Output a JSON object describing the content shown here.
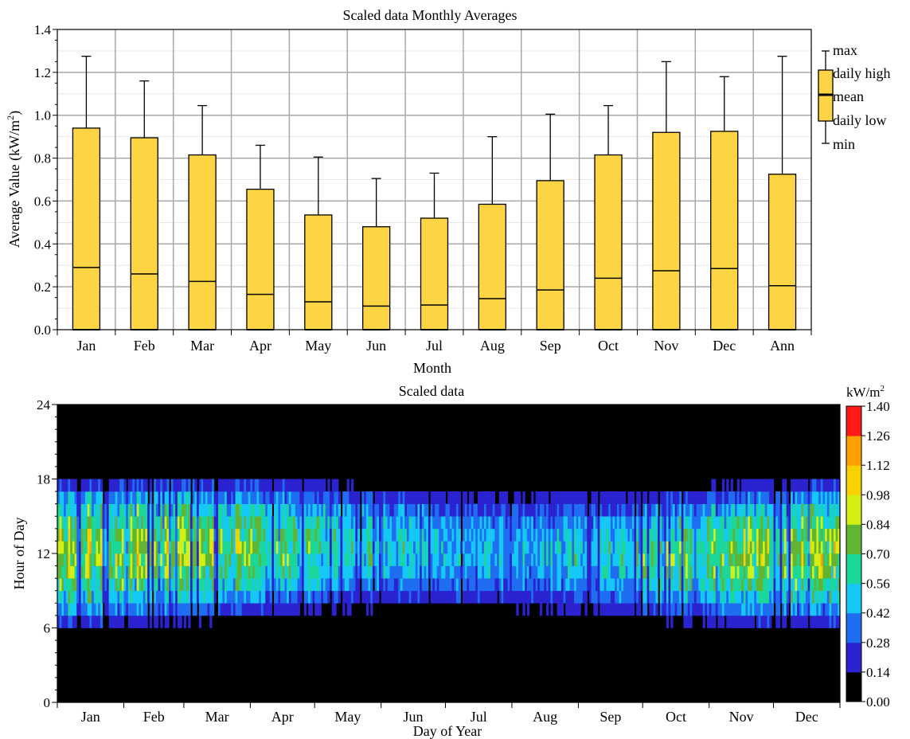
{
  "chart_data": [
    {
      "type": "box",
      "title": "Scaled data Monthly Averages",
      "xlabel": "Month",
      "ylabel": "Average Value (kW/m",
      "ylabel_sup": "2",
      "ylabel_close": ")",
      "ylim": [
        0,
        1.4
      ],
      "yticks": [
        "0.0",
        "0.2",
        "0.4",
        "0.6",
        "0.8",
        "1.0",
        "1.2",
        "1.4"
      ],
      "grid": true,
      "box_color": "#fcd444",
      "categories": [
        "Jan",
        "Feb",
        "Mar",
        "Apr",
        "May",
        "Jun",
        "Jul",
        "Aug",
        "Sep",
        "Oct",
        "Nov",
        "Dec",
        "Ann"
      ],
      "max": [
        1.275,
        1.16,
        1.045,
        0.86,
        0.805,
        0.705,
        0.73,
        0.9,
        1.005,
        1.045,
        1.25,
        1.18,
        1.275
      ],
      "daily_high": [
        0.94,
        0.895,
        0.815,
        0.655,
        0.535,
        0.48,
        0.52,
        0.585,
        0.695,
        0.815,
        0.92,
        0.925,
        0.725
      ],
      "mean": [
        0.29,
        0.26,
        0.225,
        0.165,
        0.13,
        0.11,
        0.115,
        0.145,
        0.185,
        0.24,
        0.275,
        0.285,
        0.205
      ],
      "daily_low": [
        0,
        0,
        0,
        0,
        0,
        0,
        0,
        0,
        0,
        0,
        0,
        0,
        0
      ],
      "min": [
        0,
        0,
        0,
        0,
        0,
        0,
        0,
        0,
        0,
        0,
        0,
        0,
        0
      ],
      "legend": {
        "position": "right",
        "entries": [
          "max",
          "daily high",
          "mean",
          "daily low",
          "min"
        ]
      }
    },
    {
      "type": "heatmap",
      "title": "Scaled data",
      "xlabel": "Day of Year",
      "ylabel": "Hour of Day",
      "x_range": [
        0,
        365
      ],
      "ylim": [
        0,
        24
      ],
      "yticks": [
        "0",
        "6",
        "12",
        "18",
        "24"
      ],
      "month_labels": [
        "Jan",
        "Feb",
        "Mar",
        "Apr",
        "May",
        "Jun",
        "Jul",
        "Aug",
        "Sep",
        "Oct",
        "Nov",
        "Dec"
      ],
      "colorbar": {
        "unit": "kW/m",
        "unit_sup": "2",
        "ticks": [
          "0.00",
          "0.14",
          "0.28",
          "0.42",
          "0.56",
          "0.70",
          "0.84",
          "0.98",
          "1.12",
          "1.26",
          "1.40"
        ],
        "colors": [
          "#000000",
          "#2b22d0",
          "#1f6df0",
          "#15c8f5",
          "#1cd79a",
          "#62b532",
          "#d2f015",
          "#f8d100",
          "#ffa000",
          "#ff1a1a"
        ]
      }
    }
  ]
}
